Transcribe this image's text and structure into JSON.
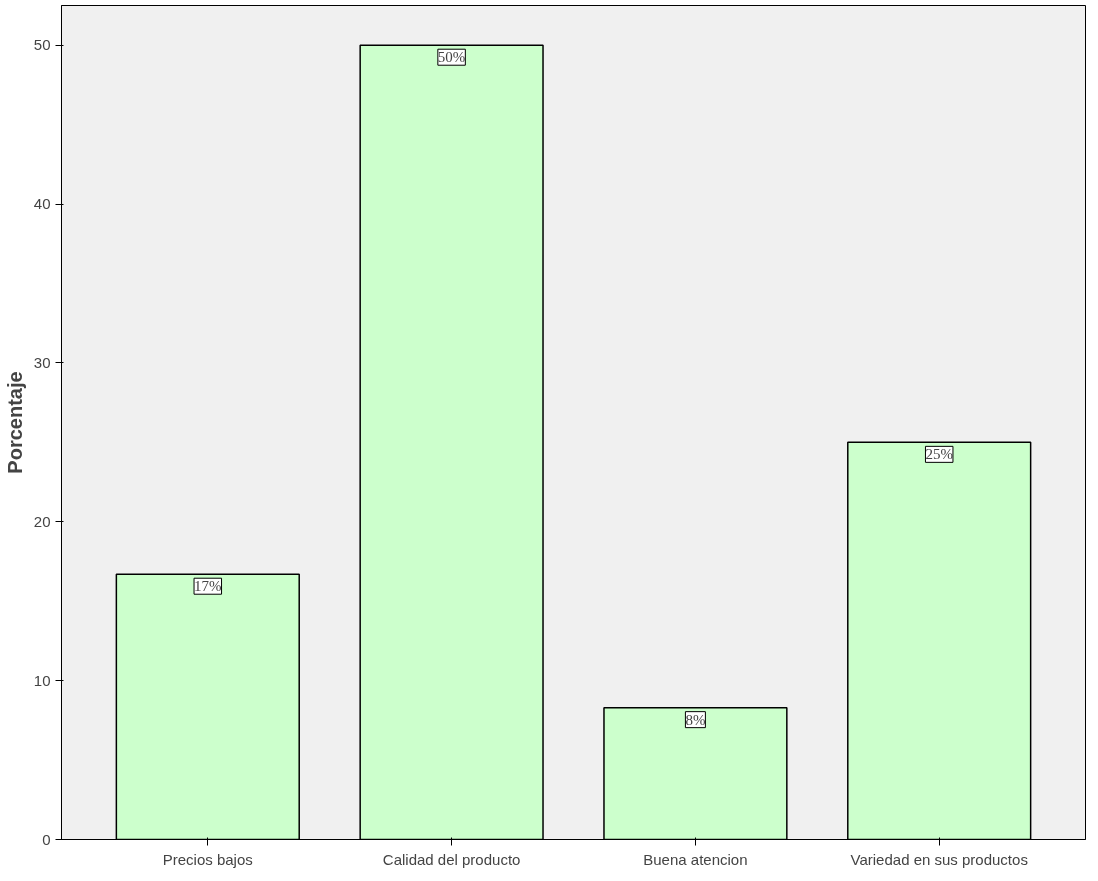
{
  "chart_data": {
    "type": "bar",
    "ylabel": "Porcentaje",
    "categories": [
      "Precios bajos",
      "Calidad del producto",
      "Buena atencion",
      "Variedad en sus productos"
    ],
    "values": [
      16.7,
      50,
      8.3,
      25
    ],
    "value_labels": [
      "17%",
      "50%",
      "8%",
      "25%"
    ],
    "color": "#ccffcc",
    "ylim": [
      0,
      52.5
    ],
    "yticks": [
      0,
      10,
      20,
      30,
      40,
      50
    ],
    "grid": false
  }
}
